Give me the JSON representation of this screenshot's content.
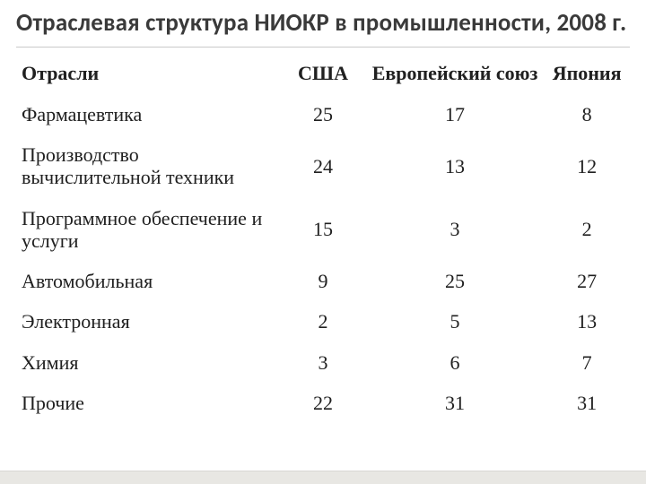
{
  "title": "Отраслевая структура НИОКР в промышленности, 2008 г.",
  "columns": {
    "industry": "Отрасли",
    "usa": "США",
    "eu": "Европейский союз",
    "japan": "Япония"
  },
  "rows": [
    {
      "label": "Фармацевтика",
      "usa": "25",
      "eu": "17",
      "japan": "8"
    },
    {
      "label": "Производство вычислительной техники",
      "usa": "24",
      "eu": "13",
      "japan": "12"
    },
    {
      "label": "Программное обеспечение и услуги",
      "usa": "15",
      "eu": "3",
      "japan": "2"
    },
    {
      "label": "Автомобильная",
      "usa": "9",
      "eu": "25",
      "japan": "27"
    },
    {
      "label": "Электронная",
      "usa": "2",
      "eu": "5",
      "japan": "13"
    },
    {
      "label": "Химия",
      "usa": "3",
      "eu": "6",
      "japan": "7"
    },
    {
      "label": "Прочие",
      "usa": "22",
      "eu": "31",
      "japan": "31"
    }
  ],
  "style": {
    "type": "table",
    "background_color": "#ffffff",
    "title_font_family": "Calibri",
    "title_font_size_pt": 20,
    "title_color": "#3a3a3a",
    "body_font_family": "Times New Roman",
    "body_font_size_pt": 16,
    "body_color": "#202020",
    "rule_color": "#c9c9c9",
    "footer_bar_color": "#e8e7e3",
    "column_widths_pct": {
      "industry": 43,
      "usa": 14,
      "eu": 29,
      "japan": 14
    },
    "column_align": {
      "industry": "left",
      "usa": "center",
      "eu": "center",
      "japan": "center"
    }
  }
}
